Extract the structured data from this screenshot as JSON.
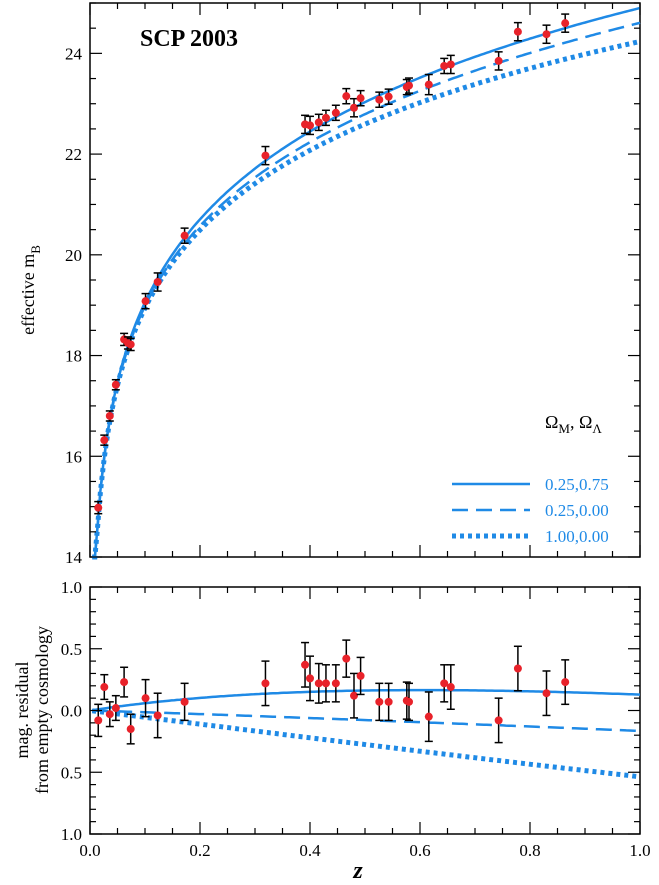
{
  "chart_data": [
    {
      "type": "scatter",
      "panel": "top",
      "title": "SCP 2003",
      "xlabel": "z",
      "ylabel": "effective m",
      "ylabel_subscript": "B",
      "xlim": [
        0.0,
        1.0
      ],
      "ylim": [
        14,
        25
      ],
      "y_ticks": [
        "14",
        "16",
        "18",
        "20",
        "22",
        "24"
      ],
      "x_ticks": [
        "0.0",
        "0.2",
        "0.4",
        "0.6",
        "0.8",
        "1.0"
      ],
      "points": [
        {
          "z": 0.015,
          "m": 14.98,
          "err": 0.12
        },
        {
          "z": 0.026,
          "m": 16.32,
          "err": 0.1
        },
        {
          "z": 0.036,
          "m": 16.8,
          "err": 0.1
        },
        {
          "z": 0.047,
          "m": 17.42,
          "err": 0.1
        },
        {
          "z": 0.062,
          "m": 18.32,
          "err": 0.12
        },
        {
          "z": 0.069,
          "m": 18.25,
          "err": 0.12
        },
        {
          "z": 0.074,
          "m": 18.22,
          "err": 0.12
        },
        {
          "z": 0.101,
          "m": 19.08,
          "err": 0.15
        },
        {
          "z": 0.123,
          "m": 19.46,
          "err": 0.18
        },
        {
          "z": 0.172,
          "m": 20.38,
          "err": 0.15
        },
        {
          "z": 0.319,
          "m": 21.97,
          "err": 0.18
        },
        {
          "z": 0.391,
          "m": 22.59,
          "err": 0.18
        },
        {
          "z": 0.4,
          "m": 22.57,
          "err": 0.18
        },
        {
          "z": 0.416,
          "m": 22.63,
          "err": 0.16
        },
        {
          "z": 0.429,
          "m": 22.72,
          "err": 0.15
        },
        {
          "z": 0.447,
          "m": 22.82,
          "err": 0.15
        },
        {
          "z": 0.466,
          "m": 23.15,
          "err": 0.15
        },
        {
          "z": 0.48,
          "m": 22.92,
          "err": 0.18
        },
        {
          "z": 0.492,
          "m": 23.11,
          "err": 0.15
        },
        {
          "z": 0.526,
          "m": 23.08,
          "err": 0.15
        },
        {
          "z": 0.543,
          "m": 23.14,
          "err": 0.15
        },
        {
          "z": 0.576,
          "m": 23.33,
          "err": 0.15
        },
        {
          "z": 0.58,
          "m": 23.36,
          "err": 0.15
        },
        {
          "z": 0.616,
          "m": 23.38,
          "err": 0.2
        },
        {
          "z": 0.644,
          "m": 23.75,
          "err": 0.15
        },
        {
          "z": 0.656,
          "m": 23.78,
          "err": 0.18
        },
        {
          "z": 0.743,
          "m": 23.85,
          "err": 0.18
        },
        {
          "z": 0.778,
          "m": 24.43,
          "err": 0.18
        },
        {
          "z": 0.83,
          "m": 24.38,
          "err": 0.18
        },
        {
          "z": 0.864,
          "m": 24.6,
          "err": 0.18
        }
      ],
      "legend": {
        "header": "Ω_M, Ω_Λ",
        "entries": [
          {
            "label": "0.25,0.75",
            "om": 0.25,
            "ol": 0.75,
            "style": "solid"
          },
          {
            "label": "0.25,0.00",
            "om": 0.25,
            "ol": 0.0,
            "style": "dashed"
          },
          {
            "label": "1.00,0.00",
            "om": 1.0,
            "ol": 0.0,
            "style": "dotted"
          }
        ],
        "placement": "bottom-right"
      }
    },
    {
      "type": "scatter",
      "panel": "bottom",
      "xlabel": "z",
      "ylabel_line1": "mag. residual",
      "ylabel_line2": "from empty cosmology",
      "xlim": [
        0.0,
        1.0
      ],
      "ylim": [
        -1.0,
        1.0
      ],
      "y_ticks": [
        "1.0",
        "0.5",
        "0.0",
        "0.5",
        "1.0"
      ],
      "x_ticks": [
        "0.0",
        "0.2",
        "0.4",
        "0.6",
        "0.8",
        "1.0"
      ],
      "points": [
        {
          "z": 0.015,
          "r": -0.08,
          "err": 0.13
        },
        {
          "z": 0.026,
          "r": 0.19,
          "err": 0.1
        },
        {
          "z": 0.036,
          "r": -0.03,
          "err": 0.1
        },
        {
          "z": 0.047,
          "r": 0.02,
          "err": 0.1
        },
        {
          "z": 0.062,
          "r": 0.23,
          "err": 0.12
        },
        {
          "z": 0.074,
          "r": -0.15,
          "err": 0.12
        },
        {
          "z": 0.101,
          "r": 0.1,
          "err": 0.15
        },
        {
          "z": 0.123,
          "r": -0.04,
          "err": 0.18
        },
        {
          "z": 0.172,
          "r": 0.07,
          "err": 0.15
        },
        {
          "z": 0.319,
          "r": 0.22,
          "err": 0.18
        },
        {
          "z": 0.391,
          "r": 0.37,
          "err": 0.18
        },
        {
          "z": 0.4,
          "r": 0.26,
          "err": 0.18
        },
        {
          "z": 0.416,
          "r": 0.22,
          "err": 0.16
        },
        {
          "z": 0.429,
          "r": 0.22,
          "err": 0.15
        },
        {
          "z": 0.447,
          "r": 0.22,
          "err": 0.15
        },
        {
          "z": 0.466,
          "r": 0.42,
          "err": 0.15
        },
        {
          "z": 0.48,
          "r": 0.12,
          "err": 0.18
        },
        {
          "z": 0.492,
          "r": 0.28,
          "err": 0.15
        },
        {
          "z": 0.526,
          "r": 0.07,
          "err": 0.15
        },
        {
          "z": 0.543,
          "r": 0.07,
          "err": 0.15
        },
        {
          "z": 0.576,
          "r": 0.08,
          "err": 0.15
        },
        {
          "z": 0.58,
          "r": 0.07,
          "err": 0.15
        },
        {
          "z": 0.616,
          "r": -0.05,
          "err": 0.2
        },
        {
          "z": 0.644,
          "r": 0.22,
          "err": 0.15
        },
        {
          "z": 0.656,
          "r": 0.19,
          "err": 0.18
        },
        {
          "z": 0.743,
          "r": -0.08,
          "err": 0.18
        },
        {
          "z": 0.778,
          "r": 0.34,
          "err": 0.18
        },
        {
          "z": 0.83,
          "r": 0.14,
          "err": 0.18
        },
        {
          "z": 0.864,
          "r": 0.23,
          "err": 0.18
        }
      ]
    }
  ],
  "colors": {
    "curve": "#1f8ae6",
    "point": "#e8222a",
    "errorbar": "#000000",
    "axis": "#000000"
  }
}
